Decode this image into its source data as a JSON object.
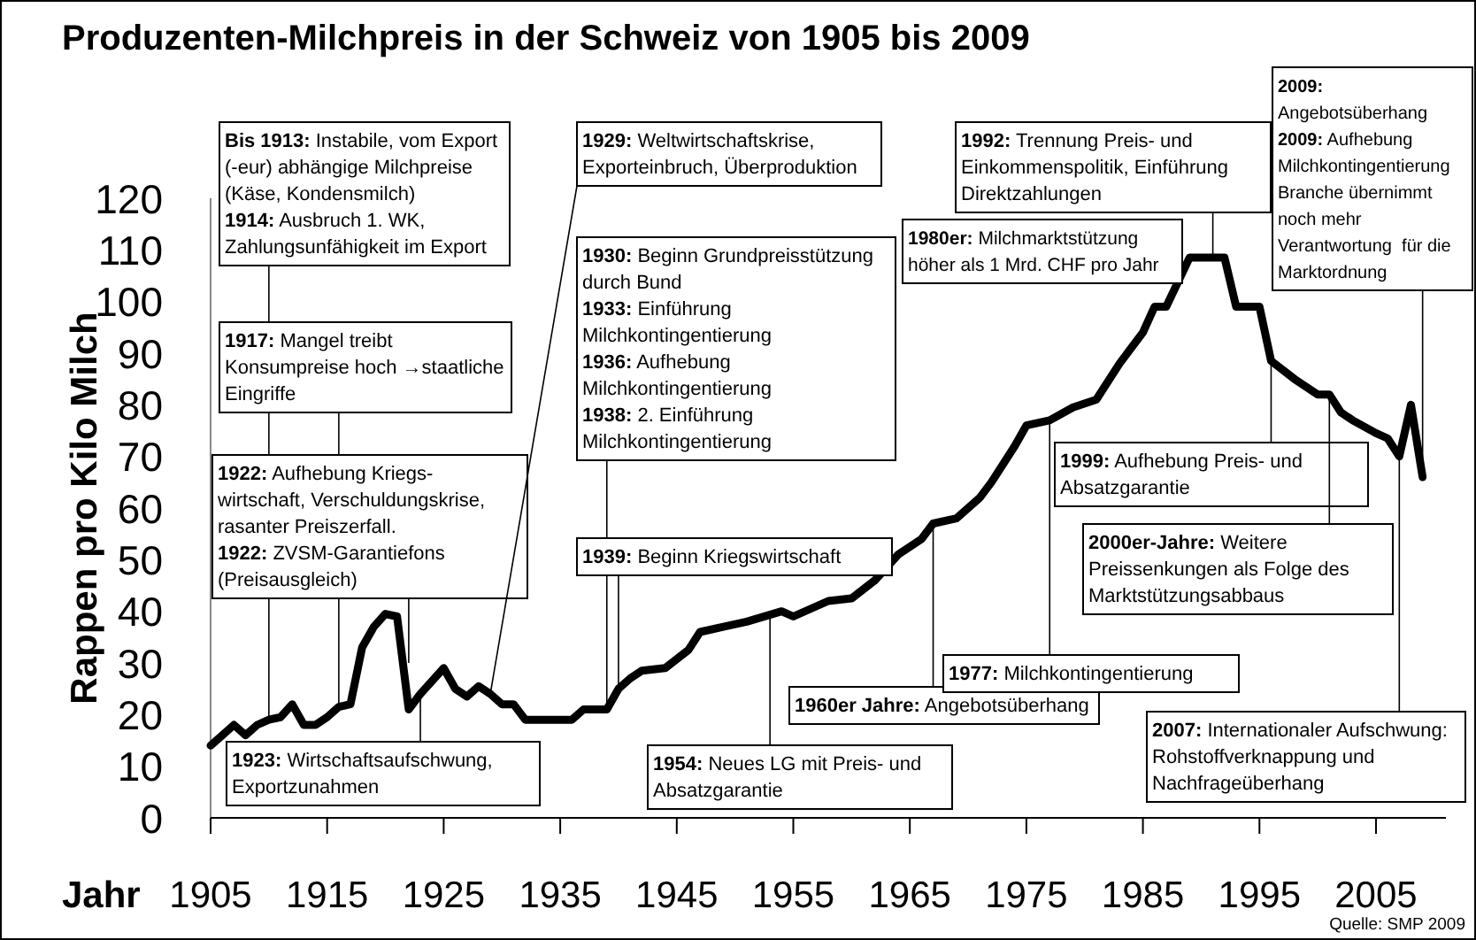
{
  "chart_data": {
    "type": "line",
    "title": "Produzenten-Milchpreis in der Schweiz von 1905 bis 2009",
    "xlabel": "Jahr",
    "ylabel": "Rappen pro Kilo Milch",
    "x": [
      1905,
      1907,
      1908,
      1909,
      1910,
      1911,
      1912,
      1913,
      1914,
      1915,
      1916,
      1917,
      1918,
      1919,
      1920,
      1921,
      1922,
      1923,
      1925,
      1926,
      1927,
      1928,
      1929,
      1930,
      1931,
      1932,
      1936,
      1937,
      1939,
      1940,
      1941,
      1942,
      1944,
      1946,
      1947,
      1949,
      1951,
      1954,
      1955,
      1958,
      1960,
      1962,
      1964,
      1966,
      1967,
      1969,
      1971,
      1972,
      1974,
      1975,
      1977,
      1979,
      1981,
      1983,
      1985,
      1986,
      1987,
      1989,
      1992,
      1993,
      1995,
      1996,
      1998,
      2000,
      2001,
      2002,
      2003,
      2005,
      2006,
      2007,
      2008,
      2009
    ],
    "series": [
      {
        "color": "#000000",
        "values": [
          14,
          18,
          16,
          18,
          19,
          19.5,
          22,
          18,
          18,
          19.5,
          21.5,
          22,
          33,
          37,
          39.5,
          39,
          21,
          24,
          29,
          25,
          23.5,
          25.5,
          24,
          22,
          22,
          19,
          19,
          21,
          21,
          25,
          27,
          28.5,
          29,
          32.5,
          36,
          37,
          38,
          40,
          39,
          42,
          42.5,
          46,
          51,
          54,
          57,
          58,
          62,
          65,
          72,
          76,
          77,
          79.5,
          81,
          88,
          94,
          99,
          99,
          108.5,
          108.5,
          99,
          99,
          88.5,
          85,
          82,
          82,
          78.5,
          77,
          74.5,
          73.5,
          70,
          80,
          66
        ]
      }
    ],
    "xlim": [
      1905,
      2011
    ],
    "xticks": [
      1905,
      1915,
      1925,
      1935,
      1945,
      1955,
      1965,
      1975,
      1985,
      1995,
      2005
    ],
    "ylim": [
      0,
      120
    ],
    "yticks": [
      0,
      10,
      20,
      30,
      40,
      50,
      60,
      70,
      80,
      90,
      100,
      110,
      120
    ],
    "grid": false,
    "legend": false,
    "marker": "none",
    "line_style": "solid",
    "annotations": [
      {
        "text": "Bis 1913: Instabile, vom Export\n(-eur) abhängige Milchpreise\n(Käse, Kondensmilch)\n1914: Ausbruch 1. WK,\nZahlungsunfähigkeit im Export",
        "x": 1910,
        "y": 19
      },
      {
        "text": "1917: Mangel treibt\nKonsumpreise hoch →staatliche\nEingriffe",
        "x": 1916,
        "y": 21.5
      },
      {
        "text": "1922: Aufhebung Kriegs-\nwirtschaft, Verschuldungskrise,\nrasanter Preiszerfall.\n1922: ZVSM-Garantiefons\n(Preisausgleich)",
        "x": 1922,
        "y": 30
      },
      {
        "text": "1923: Wirtschaftsaufschwung,\nExportzunahmen",
        "x": 1923,
        "y": 24
      },
      {
        "text": "1929: Weltwirtschaftskrise,\nExporteinbruch, Überproduktion",
        "x": 1929,
        "y": 24
      },
      "1930: Beginn Grundpreisstützung\ndurch Bund",
      "1933: Einführung\nMilchkontingentierung",
      "1936: Aufhebung\nMilchkontingentierung",
      {
        "text": "1938: 2. Einführung\nMilchkontingentierung",
        "x": 1939,
        "y": 21
      },
      {
        "text": "1939: Beginn Kriegswirtschaft",
        "x": 1940,
        "y": 25
      },
      {
        "text": "1954: Neues LG mit Preis- und\nAbsatzgarantie",
        "x": 1953,
        "y": 40
      },
      {
        "text": "1960er Jahre: Angebotsüberhang",
        "x": 1967,
        "y": 57
      },
      {
        "text": "1977: Milchkontingentierung",
        "x": 1977,
        "y": 77
      },
      "1980er: Milchmarktstützung\nhöher als 1 Mrd. CHF pro Jahr",
      {
        "text": "1992: Trennung Preis- und\nEinkommenspolitik, Einführung\nDirektzahlungen",
        "x": 1991,
        "y": 108.5
      },
      {
        "text": "1999: Aufhebung Preis- und\nAbsatzgarantie",
        "x": 1996,
        "y": 88.5
      },
      {
        "text": "2000er-Jahre: Weitere\nPreissenkungen als Folge des\nMarktstützungsabbaus",
        "x": 2001,
        "y": 82
      },
      {
        "text": "2007: Internationaler Aufschwung:\nRohstoffverknappung und\nNachfrageüberhang",
        "x": 2007,
        "y": 70
      },
      "2009:\nAngebotsüberhang",
      {
        "text": "2009: Aufhebung\nMilchkontingentierung\nBranche übernimmt\nnoch mehr\nVerantwortung  für die\nMarktordnung",
        "x": 2009,
        "y": 66
      },
      "Quelle: SMP 2009"
    ]
  }
}
